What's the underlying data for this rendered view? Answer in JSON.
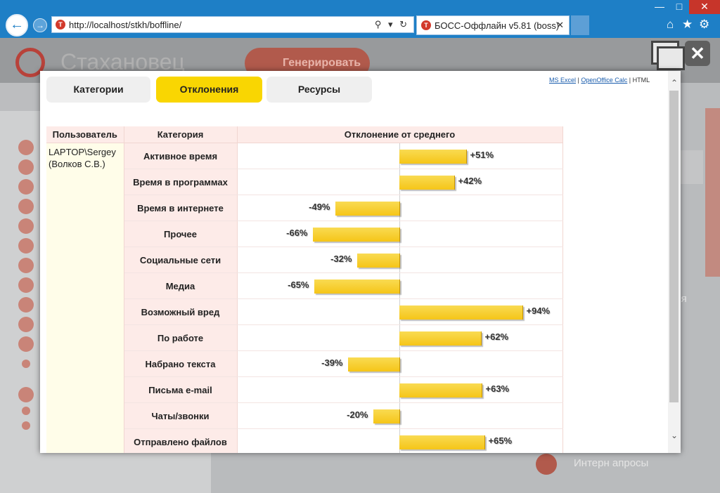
{
  "browser": {
    "url": "http://localhost/stkh/boffline/",
    "tab_title": "БОСС-Оффлайн v5.81 (boss)",
    "back": "←",
    "forward": "→",
    "tab_close": "✕",
    "address_tools": "⚲ ▾ ↻",
    "home_icon": "⌂",
    "star_icon": "★",
    "gear_icon": "⚙",
    "win_min": "—",
    "win_max": "□",
    "win_close": "✕"
  },
  "app": {
    "logo_text": "Стахановец",
    "generate_button": "Генерировать",
    "right_text": "емя",
    "bottom_text": "Интерн   апросы"
  },
  "modal": {
    "tabs": [
      "Категории",
      "Отклонения",
      "Ресурсы"
    ],
    "active_tab": "Отклонения",
    "export": {
      "excel": "MS Excel",
      "sep": "|",
      "calc": "OpenOffice Calc",
      "html": "HTML"
    },
    "close": "✕",
    "scroll_up": "⌃",
    "scroll_down": "⌄"
  },
  "table": {
    "headers": {
      "user": "Пользователь",
      "category": "Категория",
      "deviation": "Отклонение от среднего"
    },
    "user_line1": "LAPTOP\\Sergey",
    "user_line2": "(Волков С.В.)"
  },
  "chart_data": {
    "type": "bar",
    "title": "Отклонение от среднего",
    "orientation": "horizontal",
    "unit": "%",
    "xlim": [
      -100,
      100
    ],
    "colors": {
      "bar": "#f5c518"
    },
    "categories": [
      "Активное время",
      "Время в программах",
      "Время в интернете",
      "Прочее",
      "Социальные сети",
      "Медиа",
      "Возможный вред",
      "По работе",
      "Набрано текста",
      "Письма e-mail",
      "Чаты/звонки",
      "Отправлено файлов"
    ],
    "values": [
      51,
      42,
      -49,
      -66,
      -32,
      -65,
      94,
      62,
      -39,
      63,
      -20,
      65
    ],
    "labels": [
      "+51%",
      "+42%",
      "-49%",
      "-66%",
      "-32%",
      "-65%",
      "+94%",
      "+62%",
      "-39%",
      "+63%",
      "-20%",
      "+65%"
    ]
  }
}
